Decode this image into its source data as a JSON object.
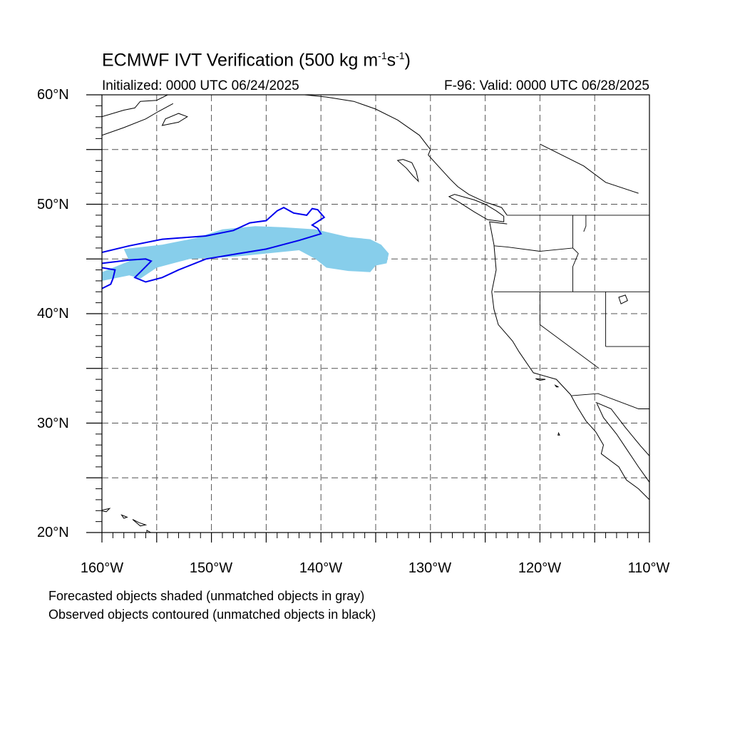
{
  "header": {
    "title_main": "ECMWF IVT Verification (500 kg m",
    "title_exp1": "-1",
    "title_mid": "s",
    "title_exp2": "-1",
    "title_end": ")",
    "initialized": "Initialized: 0000 UTC 06/24/2025",
    "valid": "F-96: Valid: 0000 UTC 06/28/2025"
  },
  "axes": {
    "lat_labels": [
      "60°N",
      "50°N",
      "40°N",
      "30°N",
      "20°N"
    ],
    "lon_labels": [
      "160°W",
      "150°W",
      "140°W",
      "130°W",
      "120°W",
      "110°W"
    ],
    "lon_range": [
      -160,
      -110
    ],
    "lat_range": [
      20,
      60
    ],
    "grid": true,
    "grid_style": "dashed"
  },
  "legend": {
    "note_1": "Forecasted objects shaded (unmatched objects in gray)",
    "note_2": "Observed objects contoured (unmatched objects in black)"
  },
  "colors": {
    "forecast_fill": "#87ceeb",
    "observed_contour": "#0000ee",
    "coastline": "#000000",
    "grid": "#555555"
  },
  "objects": {
    "forecast_object": {
      "label": "",
      "polygon_lonlat": [
        [
          -160,
          43.0
        ],
        [
          -157.5,
          43.5
        ],
        [
          -156.5,
          43.2
        ],
        [
          -155.0,
          44.2
        ],
        [
          -152.0,
          45.0
        ],
        [
          -148.0,
          45.2
        ],
        [
          -145.0,
          45.5
        ],
        [
          -142.0,
          45.8
        ],
        [
          -140.5,
          45.0
        ],
        [
          -139.5,
          44.2
        ],
        [
          -137.5,
          43.9
        ],
        [
          -135.5,
          43.8
        ],
        [
          -135.0,
          44.4
        ],
        [
          -134.0,
          44.6
        ],
        [
          -133.8,
          45.5
        ],
        [
          -134.5,
          46.3
        ],
        [
          -135.5,
          46.8
        ],
        [
          -137.5,
          47.0
        ],
        [
          -140.5,
          47.7
        ],
        [
          -143.5,
          47.9
        ],
        [
          -146.0,
          48.0
        ],
        [
          -149.0,
          47.7
        ],
        [
          -151.5,
          46.9
        ],
        [
          -154.5,
          46.3
        ],
        [
          -158.0,
          45.9
        ],
        [
          -157.5,
          44.8
        ],
        [
          -159.0,
          44.2
        ],
        [
          -160.0,
          43.8
        ]
      ]
    },
    "observed_contours": [
      {
        "label": "",
        "polyline_lonlat": [
          [
            -160,
            45.6
          ],
          [
            -157.5,
            46.2
          ],
          [
            -154.5,
            46.8
          ],
          [
            -150.5,
            47.1
          ],
          [
            -148.0,
            47.6
          ],
          [
            -146.5,
            48.3
          ],
          [
            -145.0,
            48.5
          ],
          [
            -144.0,
            49.4
          ],
          [
            -143.4,
            49.7
          ],
          [
            -142.5,
            49.2
          ],
          [
            -141.3,
            49.0
          ],
          [
            -140.8,
            49.6
          ],
          [
            -140.3,
            49.5
          ],
          [
            -139.7,
            48.8
          ],
          [
            -140.8,
            48.1
          ],
          [
            -140.3,
            47.8
          ],
          [
            -140.0,
            47.3
          ],
          [
            -142.0,
            46.7
          ],
          [
            -145.0,
            45.9
          ],
          [
            -147.5,
            45.5
          ],
          [
            -150.5,
            45.0
          ],
          [
            -153.0,
            44.0
          ],
          [
            -154.5,
            43.3
          ],
          [
            -156.0,
            42.9
          ],
          [
            -157.0,
            43.3
          ],
          [
            -156.5,
            43.8
          ],
          [
            -155.5,
            44.8
          ],
          [
            -156.0,
            45.0
          ],
          [
            -157.5,
            44.9
          ],
          [
            -160,
            44.6
          ]
        ]
      },
      {
        "label": "",
        "polyline_lonlat": [
          [
            -160,
            42.3
          ],
          [
            -159.2,
            42.7
          ],
          [
            -159.0,
            43.2
          ],
          [
            -158.8,
            44.0
          ],
          [
            -160,
            44.2
          ]
        ]
      }
    ]
  },
  "geography": {
    "coastline_lonlat": [
      [
        -130.0,
        55.0
      ],
      [
        -131.0,
        56.3
      ],
      [
        -133.0,
        57.7
      ],
      [
        -135.0,
        58.7
      ],
      [
        -137.0,
        59.4
      ],
      [
        -139.5,
        59.8
      ],
      [
        -141.5,
        60.0
      ]
    ],
    "bc_coast_lonlat": [
      [
        -123.0,
        49.0
      ],
      [
        -123.5,
        49.7
      ],
      [
        -125.0,
        50.2
      ],
      [
        -126.5,
        50.9
      ],
      [
        -127.5,
        51.6
      ],
      [
        -128.2,
        52.3
      ],
      [
        -129.3,
        53.5
      ],
      [
        -130.2,
        54.5
      ],
      [
        -130.0,
        55.0
      ]
    ],
    "vancouver_island_lonlat": [
      [
        -123.3,
        48.4
      ],
      [
        -124.8,
        48.6
      ],
      [
        -126.0,
        49.3
      ],
      [
        -127.4,
        50.2
      ],
      [
        -128.3,
        50.7
      ],
      [
        -127.8,
        50.9
      ],
      [
        -126.0,
        50.4
      ],
      [
        -125.0,
        50.0
      ],
      [
        -124.0,
        49.4
      ],
      [
        -123.3,
        48.9
      ],
      [
        -123.3,
        48.4
      ]
    ],
    "haida_gwaii_lonlat": [
      [
        -131.1,
        52.1
      ],
      [
        -131.6,
        52.6
      ],
      [
        -132.2,
        53.3
      ],
      [
        -133.0,
        54.0
      ],
      [
        -132.5,
        54.1
      ],
      [
        -131.7,
        53.8
      ],
      [
        -131.3,
        53.0
      ],
      [
        -131.1,
        52.1
      ]
    ],
    "us_mexico_coast_lonlat": [
      [
        -123.0,
        48.2
      ],
      [
        -124.6,
        48.4
      ],
      [
        -124.2,
        46.3
      ],
      [
        -124.0,
        44.0
      ],
      [
        -124.4,
        42.0
      ],
      [
        -124.2,
        40.4
      ],
      [
        -123.8,
        39.0
      ],
      [
        -122.5,
        37.5
      ],
      [
        -121.9,
        36.5
      ],
      [
        -120.6,
        34.6
      ],
      [
        -118.5,
        34.0
      ],
      [
        -117.2,
        32.6
      ],
      [
        -116.6,
        31.5
      ],
      [
        -115.8,
        30.2
      ],
      [
        -114.9,
        29.2
      ],
      [
        -114.2,
        28.0
      ],
      [
        -114.4,
        27.2
      ],
      [
        -112.8,
        26.0
      ],
      [
        -112.1,
        24.8
      ],
      [
        -111.0,
        24.0
      ],
      [
        -110.0,
        23.0
      ]
    ],
    "gulf_of_california_lonlat": [
      [
        -114.8,
        31.8
      ],
      [
        -114.2,
        30.5
      ],
      [
        -113.0,
        29.0
      ],
      [
        -112.2,
        27.8
      ],
      [
        -111.0,
        26.0
      ],
      [
        -110.0,
        24.6
      ]
    ],
    "gulf_east_coast_lonlat": [
      [
        -114.9,
        31.9
      ],
      [
        -113.5,
        31.3
      ],
      [
        -112.2,
        29.6
      ],
      [
        -110.8,
        27.9
      ],
      [
        -110.0,
        27.0
      ]
    ],
    "alaska_lonlat": [
      [
        -160.0,
        58.0
      ],
      [
        -158.0,
        58.6
      ],
      [
        -157.0,
        58.8
      ],
      [
        -156.5,
        59.4
      ],
      [
        -155.0,
        59.5
      ],
      [
        -154.0,
        60.0
      ]
    ],
    "alaska_peninsula_lonlat": [
      [
        -160.0,
        56.3
      ],
      [
        -158.0,
        57.0
      ],
      [
        -156.0,
        57.8
      ],
      [
        -154.8,
        58.5
      ],
      [
        -153.5,
        59.2
      ]
    ],
    "kodiak_lonlat": [
      [
        -154.5,
        57.2
      ],
      [
        -153.0,
        57.5
      ],
      [
        -152.2,
        58.0
      ],
      [
        -153.0,
        58.3
      ],
      [
        -154.2,
        57.8
      ],
      [
        -154.5,
        57.2
      ]
    ],
    "hawaii_islands": [
      [
        [
          -160.2,
          22.0
        ],
        [
          -159.3,
          22.2
        ],
        [
          -159.6,
          21.9
        ],
        [
          -160.2,
          22.0
        ]
      ],
      [
        [
          -158.2,
          21.6
        ],
        [
          -157.7,
          21.4
        ],
        [
          -158.0,
          21.3
        ],
        [
          -158.2,
          21.6
        ]
      ],
      [
        [
          -157.2,
          21.2
        ],
        [
          -156.6,
          20.9
        ],
        [
          -156.0,
          20.7
        ],
        [
          -156.5,
          20.6
        ],
        [
          -157.2,
          21.2
        ]
      ],
      [
        [
          -155.9,
          20.2
        ],
        [
          -155.0,
          19.7
        ],
        [
          -155.5,
          19.0
        ],
        [
          -155.9,
          19.5
        ],
        [
          -155.9,
          20.2
        ]
      ]
    ],
    "state_borders": [
      [
        [
          -123.0,
          49.0
        ],
        [
          -110.0,
          49.0
        ]
      ],
      [
        [
          -124.2,
          46.2
        ],
        [
          -123.0,
          46.1
        ],
        [
          -120.0,
          45.7
        ],
        [
          -117.0,
          46.0
        ]
      ],
      [
        [
          -117.0,
          49.0
        ],
        [
          -117.0,
          46.0
        ],
        [
          -116.5,
          45.5
        ],
        [
          -117.0,
          44.3
        ],
        [
          -117.0,
          42.0
        ]
      ],
      [
        [
          -124.2,
          42.0
        ],
        [
          -110.0,
          42.0
        ]
      ],
      [
        [
          -120.0,
          42.0
        ],
        [
          -120.0,
          39.0
        ],
        [
          -114.6,
          35.0
        ]
      ],
      [
        [
          -114.0,
          42.0
        ],
        [
          -114.0,
          37.0
        ]
      ],
      [
        [
          -114.0,
          37.0
        ],
        [
          -110.0,
          37.0
        ]
      ],
      [
        [
          -117.1,
          32.5
        ],
        [
          -114.7,
          32.7
        ],
        [
          -111.0,
          31.3
        ],
        [
          -110.0,
          31.3
        ]
      ],
      [
        [
          -115.8,
          49.0
        ],
        [
          -115.8,
          48.0
        ],
        [
          -116.0,
          47.5
        ]
      ]
    ],
    "canada_inland_lonlat": [
      [
        -120.0,
        55.5
      ],
      [
        -118.0,
        54.5
      ],
      [
        -116.0,
        53.5
      ],
      [
        -114.0,
        52.0
      ],
      [
        -111.0,
        51.0
      ]
    ],
    "lake_lonlat": [
      [
        -112.8,
        41.5
      ],
      [
        -112.2,
        41.7
      ],
      [
        -112.0,
        41.2
      ],
      [
        -112.6,
        40.9
      ],
      [
        -112.8,
        41.5
      ]
    ],
    "channel_islands": [
      [
        [
          -120.4,
          34.05
        ],
        [
          -119.5,
          34.0
        ],
        [
          -120.0,
          33.9
        ],
        [
          -120.4,
          34.05
        ]
      ],
      [
        [
          -118.6,
          33.45
        ],
        [
          -118.3,
          33.3
        ],
        [
          -118.5,
          33.3
        ],
        [
          -118.6,
          33.45
        ]
      ]
    ],
    "guadalupe_lonlat": [
      [
        -118.3,
        29.1
      ],
      [
        -118.2,
        28.9
      ],
      [
        -118.35,
        28.9
      ],
      [
        -118.3,
        29.1
      ]
    ]
  }
}
